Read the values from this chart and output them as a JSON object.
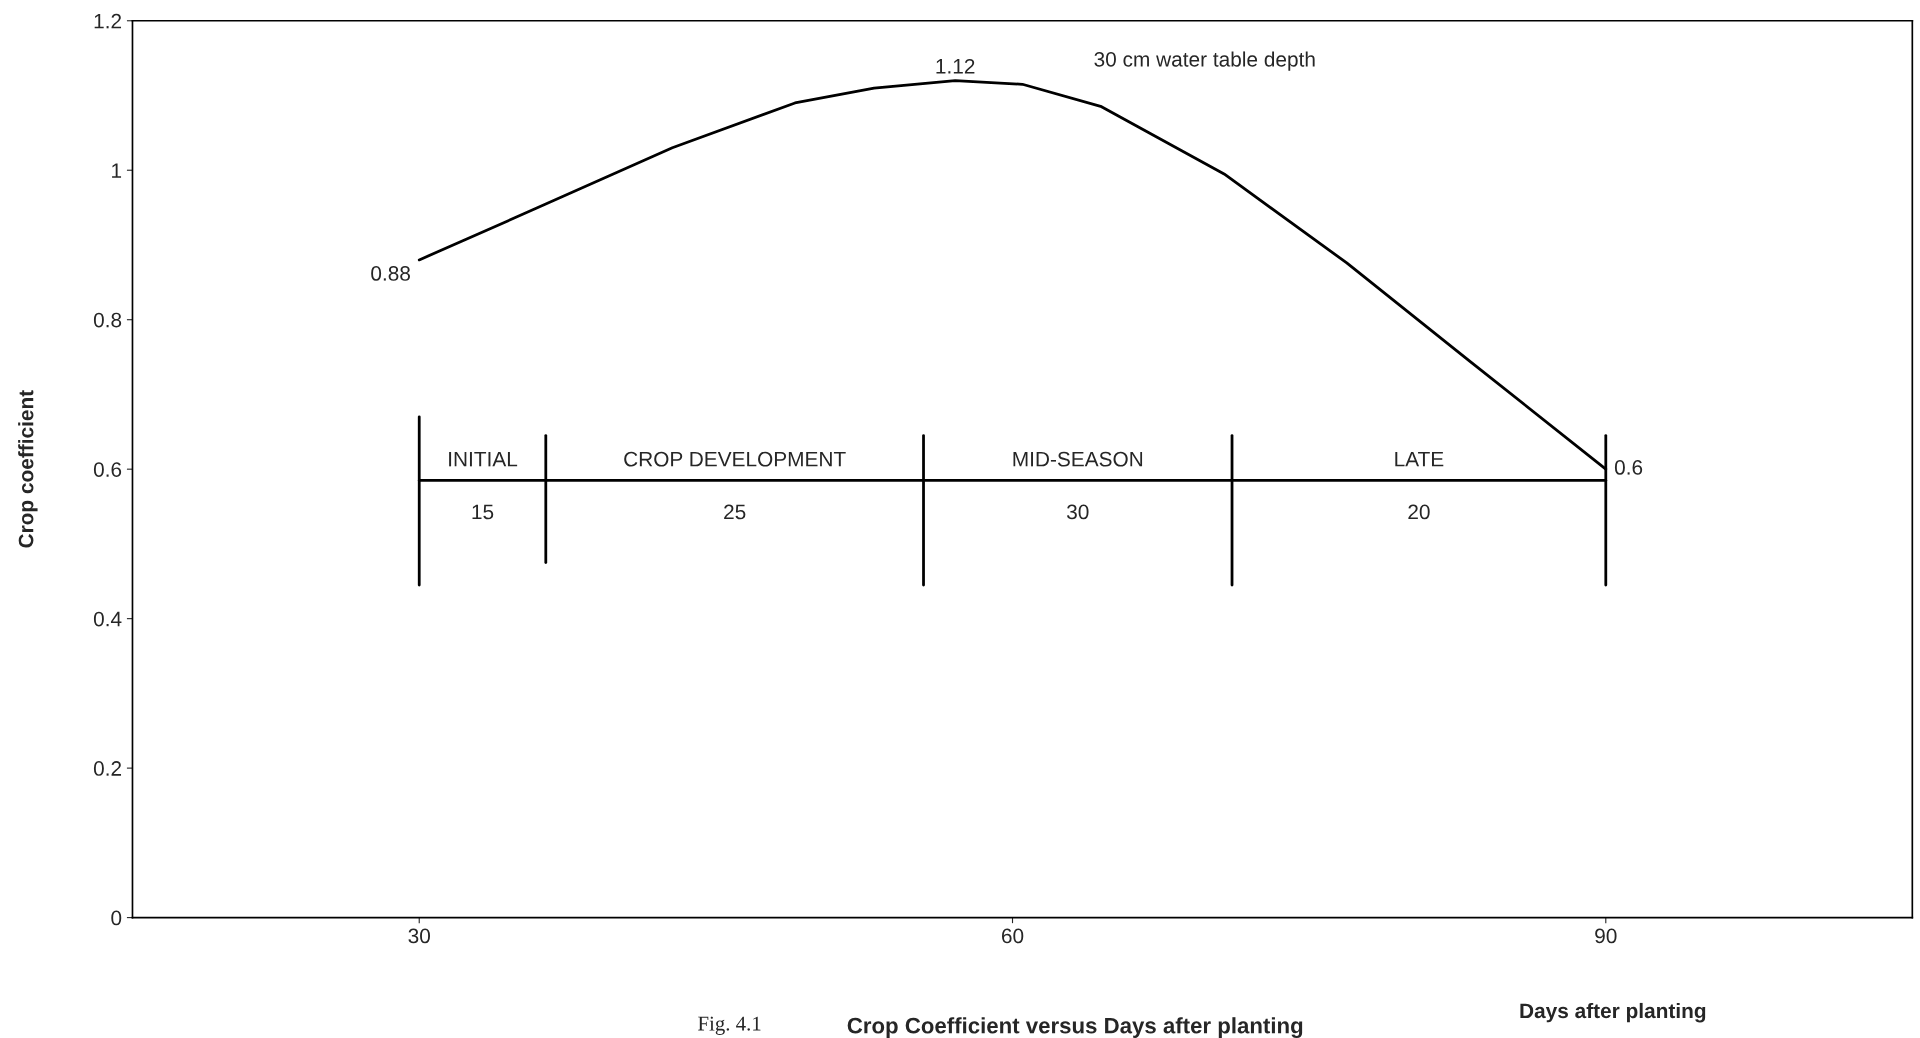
{
  "chart_data": {
    "type": "line",
    "title": "Crop Coefficient versus Days after planting",
    "xlabel": "Days after planting",
    "ylabel": "Crop coefficient",
    "xlim": [
      15.5,
      105.5
    ],
    "xticks": [
      30,
      60,
      90
    ],
    "ylim": [
      0,
      1.2
    ],
    "yticks": [
      0,
      0.2,
      0.4,
      0.6,
      0.8,
      1,
      1.2
    ],
    "grid": false,
    "legend": false,
    "marker": "none",
    "line_style": "solid",
    "series": [
      {
        "color": "#000000",
        "x": [
          30,
          36,
          42.8,
          49,
          53,
          57.1,
          60.5,
          64.5,
          70.7,
          76.9,
          83.1,
          90
        ],
        "values": [
          0.88,
          0.95,
          1.03,
          1.09,
          1.11,
          1.12,
          1.115,
          1.085,
          0.995,
          0.876,
          0.745,
          0.6
        ],
        "value_labels": [
          "0.88",
          null,
          null,
          null,
          null,
          "1.12",
          null,
          null,
          null,
          null,
          null,
          "0.6"
        ]
      },
      {
        "color": "#000000",
        "x": [
          30,
          90
        ],
        "values": [
          0.585,
          0.585
        ]
      },
      {
        "color": "#000000",
        "x": [
          30,
          30
        ],
        "values": [
          0.445,
          0.67
        ]
      },
      {
        "color": "#000000",
        "x": [
          36.4,
          36.4
        ],
        "values": [
          0.475,
          0.645
        ]
      },
      {
        "color": "#000000",
        "x": [
          55.5,
          55.5
        ],
        "values": [
          0.445,
          0.645
        ]
      },
      {
        "color": "#000000",
        "x": [
          71.1,
          71.1
        ],
        "values": [
          0.445,
          0.645
        ]
      },
      {
        "color": "#000000",
        "x": [
          90,
          90
        ],
        "values": [
          0.445,
          0.645
        ]
      }
    ],
    "annotations": [
      "30 cm water table depth",
      "Fig. 4.1",
      "INITIAL",
      "CROP DEVELOPMENT",
      "MID-SEASON",
      "LATE",
      "15",
      "25",
      "30",
      "20"
    ]
  }
}
